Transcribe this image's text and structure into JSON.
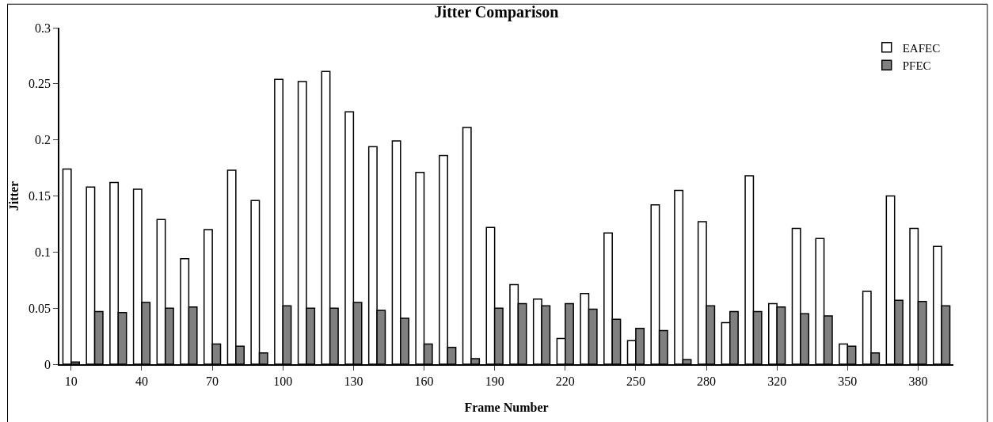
{
  "chart_data": {
    "type": "bar",
    "title": "Jitter Comparison",
    "xlabel": "Frame Number",
    "ylabel": "Jitter",
    "categories": [
      "10",
      null,
      null,
      "40",
      null,
      null,
      "70",
      null,
      null,
      "100",
      null,
      null,
      "130",
      null,
      null,
      "160",
      null,
      null,
      "190",
      null,
      null,
      "220",
      null,
      null,
      "250",
      null,
      null,
      "280",
      null,
      null,
      "320",
      null,
      null,
      "350",
      null,
      null,
      "380",
      null
    ],
    "series": [
      {
        "name": "EAFEC",
        "color": "#ffffff",
        "values": [
          0.174,
          0.158,
          0.162,
          0.156,
          0.129,
          0.094,
          0.12,
          0.173,
          0.146,
          0.254,
          0.252,
          0.261,
          0.225,
          0.194,
          0.199,
          0.171,
          0.186,
          0.211,
          0.122,
          0.071,
          0.058,
          0.023,
          0.063,
          0.117,
          0.021,
          0.142,
          0.155,
          0.127,
          0.037,
          0.168,
          0.054,
          0.121,
          0.112,
          0.018,
          0.065,
          0.15,
          0.121,
          0.105
        ]
      },
      {
        "name": "PFEC",
        "color": "#808080",
        "values": [
          0.002,
          0.047,
          0.046,
          0.055,
          0.05,
          0.051,
          0.018,
          0.016,
          0.01,
          0.052,
          0.05,
          0.05,
          0.055,
          0.048,
          0.041,
          0.018,
          0.015,
          0.005,
          0.05,
          0.054,
          0.052,
          0.054,
          0.049,
          0.04,
          0.032,
          0.03,
          0.004,
          0.052,
          0.047,
          0.047,
          0.051,
          0.045,
          0.043,
          0.016,
          0.01,
          0.057,
          0.056,
          0.052
        ]
      }
    ],
    "ylim": [
      0,
      0.3
    ],
    "yticks": [
      0,
      0.05,
      0.1,
      0.15,
      0.2,
      0.25,
      0.3
    ],
    "grid": false,
    "legend": "top right"
  }
}
